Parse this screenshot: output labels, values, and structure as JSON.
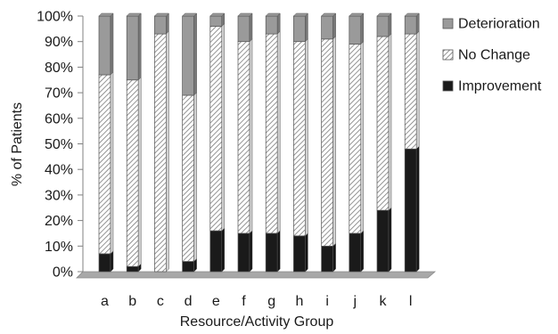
{
  "chart_data": {
    "type": "bar",
    "stacked": true,
    "three_d": true,
    "xlabel": "Resource/Activity Group",
    "ylabel": "% of Patients",
    "ylim": [
      0,
      100
    ],
    "y_ticks": [
      "0%",
      "10%",
      "20%",
      "30%",
      "40%",
      "50%",
      "60%",
      "70%",
      "80%",
      "90%",
      "100%"
    ],
    "categories": [
      "a",
      "b",
      "c",
      "d",
      "e",
      "f",
      "g",
      "h",
      "i",
      "j",
      "k",
      "l"
    ],
    "series": [
      {
        "name": "Improvement",
        "color": "#1a1a1a",
        "pattern": "solid",
        "values": [
          7,
          2,
          0,
          4,
          16,
          15,
          15,
          14,
          10,
          15,
          24,
          48
        ]
      },
      {
        "name": "No Change",
        "color": "#ffffff",
        "pattern": "hatched",
        "values": [
          70,
          73,
          93,
          65,
          80,
          75,
          78,
          76,
          81,
          74,
          68,
          45
        ]
      },
      {
        "name": "Deterioration",
        "color": "#9a9a9a",
        "pattern": "solid",
        "values": [
          23,
          25,
          7,
          31,
          4,
          10,
          7,
          10,
          9,
          11,
          8,
          7
        ]
      }
    ],
    "legend": {
      "placement": "right",
      "order": [
        "Deterioration",
        "No Change",
        "Improvement"
      ]
    },
    "grid": false
  }
}
